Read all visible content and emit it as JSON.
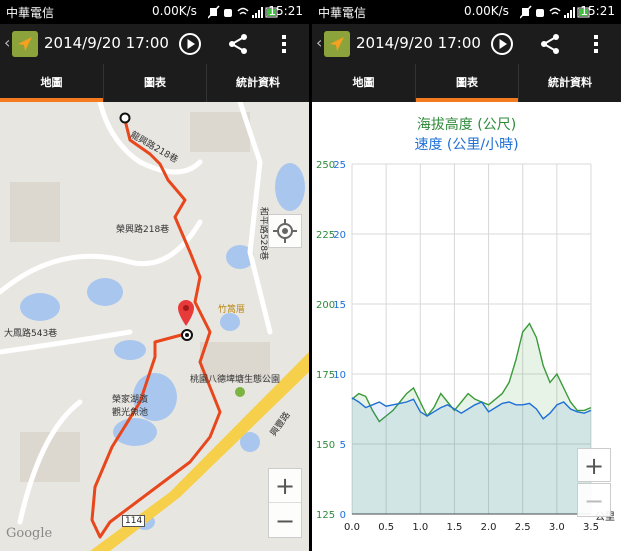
{
  "status": {
    "carrier": "中華電信",
    "net_speed": "0.00K/s",
    "time": "15:21"
  },
  "actionbar": {
    "title": "2014/9/20 17:00",
    "app_icon": "navigation-arrow-icon",
    "play_icon": "play-icon",
    "share_icon": "share-icon",
    "more_icon": "overflow-menu-icon"
  },
  "tabs": [
    {
      "label": "地圖"
    },
    {
      "label": "圖表"
    },
    {
      "label": "統計資料"
    }
  ],
  "map": {
    "labels": {
      "road1": "龍興路218巷",
      "road2": "榮興路218巷",
      "road3": "和平路528巷",
      "road4": "大鳳路543巷",
      "place1": "竹篙厝",
      "place2": "桃園八德埤塘生態公園",
      "place3": "榮家湖濱",
      "place4": "觀光魚池",
      "road5": "興豐路",
      "route_no": "114",
      "google": "Google"
    },
    "zoom_in": "+",
    "zoom_out": "−"
  },
  "chart": {
    "title1": "海拔高度 (公尺)",
    "title2": "速度 (公里/小時)",
    "zoom_in": "+",
    "zoom_out": "−"
  },
  "chart_data": {
    "type": "line",
    "title": "海拔高度 (公尺) / 速度 (公里/小時)",
    "xlabel": "公里",
    "x_ticks": [
      "0.0",
      "0.5",
      "1.0",
      "1.5",
      "2.0",
      "2.5",
      "3.0",
      "3.5"
    ],
    "xlim": [
      0,
      3.5
    ],
    "y_left_ticks": [
      "125",
      "150",
      "175",
      "200",
      "225",
      "250"
    ],
    "y_left_label": "海拔高度 (公尺)",
    "y_left_lim": [
      125,
      250
    ],
    "y_right_ticks": [
      "0",
      "5",
      "10",
      "15",
      "20",
      "25"
    ],
    "y_right_label": "速度 (公里/小時)",
    "y_right_lim": [
      0,
      25
    ],
    "grid": true,
    "series": [
      {
        "name": "海拔高度 (公尺)",
        "axis": "left",
        "color": "#3a9a3a",
        "x": [
          0.0,
          0.1,
          0.2,
          0.3,
          0.4,
          0.5,
          0.6,
          0.7,
          0.8,
          0.9,
          1.0,
          1.1,
          1.2,
          1.3,
          1.4,
          1.5,
          1.6,
          1.7,
          1.8,
          1.9,
          2.0,
          2.1,
          2.2,
          2.3,
          2.4,
          2.5,
          2.6,
          2.7,
          2.8,
          2.9,
          3.0,
          3.1,
          3.2,
          3.3,
          3.4,
          3.5
        ],
        "y": [
          166,
          168,
          167,
          162,
          158,
          160,
          162,
          165,
          168,
          170,
          165,
          160,
          163,
          168,
          165,
          162,
          165,
          168,
          166,
          165,
          164,
          166,
          168,
          172,
          180,
          190,
          193,
          188,
          178,
          172,
          175,
          170,
          165,
          162,
          162,
          163
        ]
      },
      {
        "name": "速度 (公里/小時)",
        "axis": "right",
        "color": "#1e6fd6",
        "x": [
          0.0,
          0.1,
          0.2,
          0.3,
          0.4,
          0.5,
          0.6,
          0.7,
          0.8,
          0.9,
          1.0,
          1.1,
          1.2,
          1.3,
          1.4,
          1.5,
          1.6,
          1.7,
          1.8,
          1.9,
          2.0,
          2.1,
          2.2,
          2.3,
          2.4,
          2.5,
          2.6,
          2.7,
          2.8,
          2.9,
          3.0,
          3.1,
          3.2,
          3.3,
          3.4,
          3.5
        ],
        "y": [
          8.3,
          8.0,
          7.6,
          7.8,
          8.0,
          7.7,
          7.8,
          7.9,
          8.0,
          8.2,
          7.3,
          7.0,
          7.3,
          7.6,
          7.8,
          7.5,
          7.2,
          7.5,
          7.8,
          8.0,
          7.3,
          7.6,
          7.9,
          8.0,
          7.8,
          7.8,
          7.9,
          7.5,
          6.8,
          7.2,
          7.8,
          8.0,
          7.5,
          7.3,
          7.2,
          7.4
        ]
      }
    ]
  }
}
